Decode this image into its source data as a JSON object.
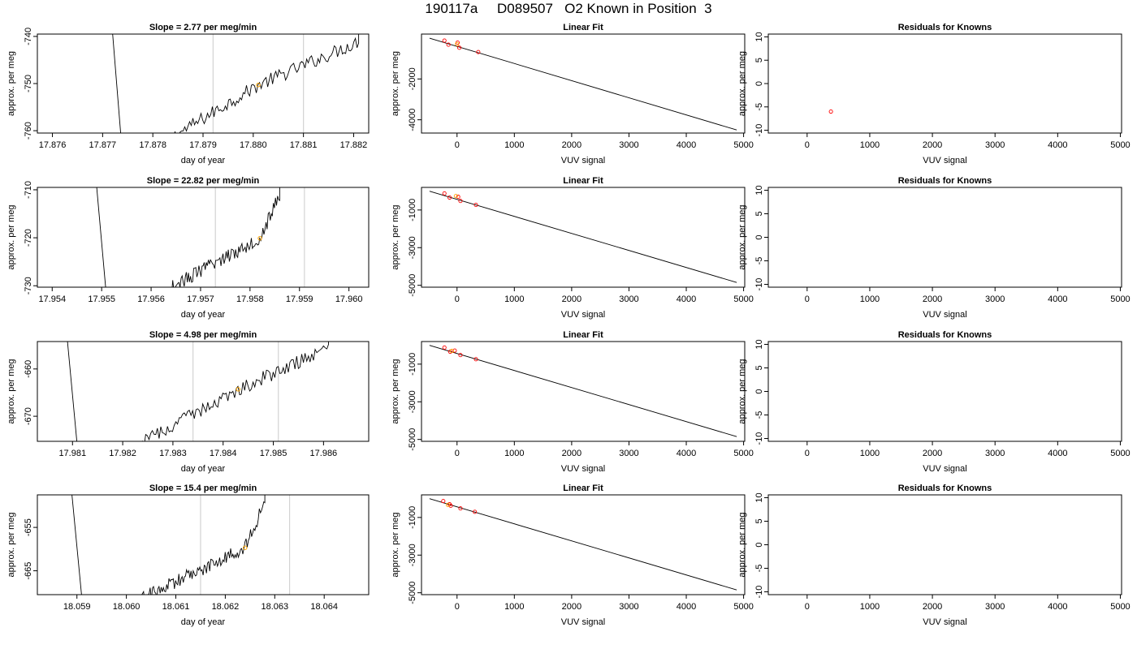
{
  "page": {
    "title": "190117a     D089507   O2 Known in Position  3"
  },
  "colors": {
    "trace": "#000000",
    "marker_orange": "#ffa500",
    "marker_red": "#ff0000",
    "vline": "#d3d3d3"
  },
  "chart_data": [
    {
      "type": "line",
      "panel": "timeseries",
      "title": "Slope =  2.77  per meg/min",
      "xlabel": "day of year",
      "ylabel": "approx. per meg",
      "xlim": [
        17.8757,
        17.8823
      ],
      "ylim": [
        -760.5,
        -739.5
      ],
      "xticks": [
        "17.876",
        "17.877",
        "17.878",
        "17.879",
        "17.880",
        "17.881",
        "17.882"
      ],
      "yticks": [
        "-740",
        "-750",
        "-760"
      ],
      "vlines": [
        17.8792,
        17.881
      ],
      "trace_start": [
        17.8772,
        -739.5
      ],
      "trace_end": [
        17.8821,
        -739.5
      ],
      "marker": [
        17.8801,
        -750.3
      ]
    },
    {
      "type": "scatter",
      "panel": "linear-fit",
      "title": "Linear Fit",
      "xlabel": "VUV signal",
      "ylabel": "approx. per meg",
      "xlim": [
        -620,
        5020
      ],
      "ylim": [
        -4650,
        200
      ],
      "xticks": [
        "0",
        "1000",
        "2000",
        "3000",
        "4000",
        "5000"
      ],
      "yticks": [
        "-2000",
        "-4000"
      ],
      "fit_line": [
        [
          -480,
          0
        ],
        [
          4880,
          -4500
        ]
      ],
      "points": [
        [
          -220,
          -120
        ],
        [
          -150,
          -320
        ],
        [
          10,
          -220
        ],
        [
          40,
          -470
        ],
        [
          370,
          -680
        ],
        [
          0,
          -290
        ]
      ]
    },
    {
      "type": "scatter",
      "panel": "residuals",
      "title": "Residuals for Knowns",
      "xlabel": "VUV signal",
      "ylabel": "approx. per meg",
      "xlim": [
        -620,
        5020
      ],
      "ylim": [
        -10.6,
        10.6
      ],
      "xticks": [
        "0",
        "1000",
        "2000",
        "3000",
        "4000",
        "5000"
      ],
      "yticks": [
        "10",
        "5",
        "0",
        "-5",
        "-10"
      ],
      "points": [
        [
          380,
          -6
        ]
      ]
    },
    {
      "type": "line",
      "panel": "timeseries",
      "title": "Slope =  22.82  per meg/min",
      "xlabel": "day of year",
      "ylabel": "approx. per meg",
      "xlim": [
        17.9537,
        17.9604
      ],
      "ylim": [
        -730.3,
        -709.5
      ],
      "xticks": [
        "17.954",
        "17.955",
        "17.956",
        "17.957",
        "17.958",
        "17.959",
        "17.960"
      ],
      "yticks": [
        "-710",
        "-720",
        "-730"
      ],
      "vlines": [
        17.9573,
        17.9591
      ],
      "trace_start": [
        17.9549,
        -709.5
      ],
      "trace_end": [
        17.9586,
        -709.5
      ],
      "marker": [
        17.9582,
        -720.1
      ]
    },
    {
      "type": "scatter",
      "panel": "linear-fit",
      "title": "Linear Fit",
      "xlabel": "VUV signal",
      "ylabel": "approx. per meg",
      "xlim": [
        -620,
        5020
      ],
      "ylim": [
        -5100,
        200
      ],
      "xticks": [
        "0",
        "1000",
        "2000",
        "3000",
        "4000",
        "5000"
      ],
      "yticks": [
        "-1000",
        "-3000",
        "-5000"
      ],
      "fit_line": [
        [
          -480,
          0
        ],
        [
          4880,
          -4850
        ]
      ],
      "points": [
        [
          -220,
          -120
        ],
        [
          -130,
          -340
        ],
        [
          20,
          -300
        ],
        [
          60,
          -520
        ],
        [
          330,
          -730
        ],
        [
          -20,
          -260
        ]
      ]
    },
    {
      "type": "scatter",
      "panel": "residuals",
      "title": "Residuals for Knowns",
      "xlabel": "VUV signal",
      "ylabel": "approx. per meg",
      "xlim": [
        -620,
        5020
      ],
      "ylim": [
        -10.6,
        10.6
      ],
      "xticks": [
        "0",
        "1000",
        "2000",
        "3000",
        "4000",
        "5000"
      ],
      "yticks": [
        "10",
        "5",
        "0",
        "-5",
        "-10"
      ],
      "points": []
    },
    {
      "type": "line",
      "panel": "timeseries",
      "title": "Slope =  4.98  per meg/min",
      "xlabel": "day of year",
      "ylabel": "approx. per meg",
      "xlim": [
        17.9803,
        17.9869
      ],
      "ylim": [
        -675.3,
        -654.2
      ],
      "xticks": [
        "17.981",
        "17.982",
        "17.983",
        "17.984",
        "17.985",
        "17.986"
      ],
      "yticks": [
        "-660",
        "-670"
      ],
      "vlines": [
        17.9834,
        17.9851
      ],
      "trace_start": [
        17.9809,
        -654.2
      ],
      "trace_end": [
        17.9861,
        -654.2
      ],
      "marker": [
        17.9843,
        -664.3
      ]
    },
    {
      "type": "scatter",
      "panel": "linear-fit",
      "title": "Linear Fit",
      "xlabel": "VUV signal",
      "ylabel": "approx. per meg",
      "xlim": [
        -620,
        5020
      ],
      "ylim": [
        -5100,
        200
      ],
      "xticks": [
        "0",
        "1000",
        "2000",
        "3000",
        "4000",
        "5000"
      ],
      "yticks": [
        "-1000",
        "-3000",
        "-5000"
      ],
      "fit_line": [
        [
          -480,
          0
        ],
        [
          4880,
          -4850
        ]
      ],
      "points": [
        [
          -220,
          -120
        ],
        [
          -120,
          -340
        ],
        [
          -40,
          -280
        ],
        [
          60,
          -520
        ],
        [
          330,
          -740
        ],
        [
          -90,
          -300
        ]
      ]
    },
    {
      "type": "scatter",
      "panel": "residuals",
      "title": "Residuals for Knowns",
      "xlabel": "VUV signal",
      "ylabel": "approx. per meg",
      "xlim": [
        -620,
        5020
      ],
      "ylim": [
        -10.6,
        10.6
      ],
      "xticks": [
        "0",
        "1000",
        "2000",
        "3000",
        "4000",
        "5000"
      ],
      "yticks": [
        "10",
        "5",
        "0",
        "-5",
        "-10"
      ],
      "points": []
    },
    {
      "type": "line",
      "panel": "timeseries",
      "title": "Slope =  15.4  per meg/min",
      "xlabel": "day of year",
      "ylabel": "approx. per meg",
      "xlim": [
        18.0582,
        18.0649
      ],
      "ylim": [
        -670.5,
        -647.5
      ],
      "xticks": [
        "18.059",
        "18.060",
        "18.061",
        "18.062",
        "18.063",
        "18.064"
      ],
      "yticks": [
        "-655",
        "-665"
      ],
      "vlines": [
        18.0615,
        18.0633
      ],
      "trace_start": [
        18.0589,
        -647.5
      ],
      "trace_end": [
        18.0628,
        -647.5
      ],
      "marker": [
        18.0624,
        -659.7
      ]
    },
    {
      "type": "scatter",
      "panel": "linear-fit",
      "title": "Linear Fit",
      "xlabel": "VUV signal",
      "ylabel": "approx. per meg",
      "xlim": [
        -620,
        5020
      ],
      "ylim": [
        -5100,
        200
      ],
      "xticks": [
        "0",
        "1000",
        "2000",
        "3000",
        "4000",
        "5000"
      ],
      "yticks": [
        "-1000",
        "-3000",
        "-5000"
      ],
      "fit_line": [
        [
          -480,
          0
        ],
        [
          4880,
          -4850
        ]
      ],
      "points": [
        [
          -240,
          -130
        ],
        [
          -130,
          -300
        ],
        [
          -110,
          -380
        ],
        [
          60,
          -520
        ],
        [
          310,
          -700
        ],
        [
          -160,
          -330
        ]
      ]
    },
    {
      "type": "scatter",
      "panel": "residuals",
      "title": "Residuals for Knowns",
      "xlabel": "VUV signal",
      "ylabel": "approx. per meg",
      "xlim": [
        -620,
        5020
      ],
      "ylim": [
        -10.6,
        10.6
      ],
      "xticks": [
        "0",
        "1000",
        "2000",
        "3000",
        "4000",
        "5000"
      ],
      "yticks": [
        "10",
        "5",
        "0",
        "-5",
        "-10"
      ],
      "points": []
    }
  ]
}
